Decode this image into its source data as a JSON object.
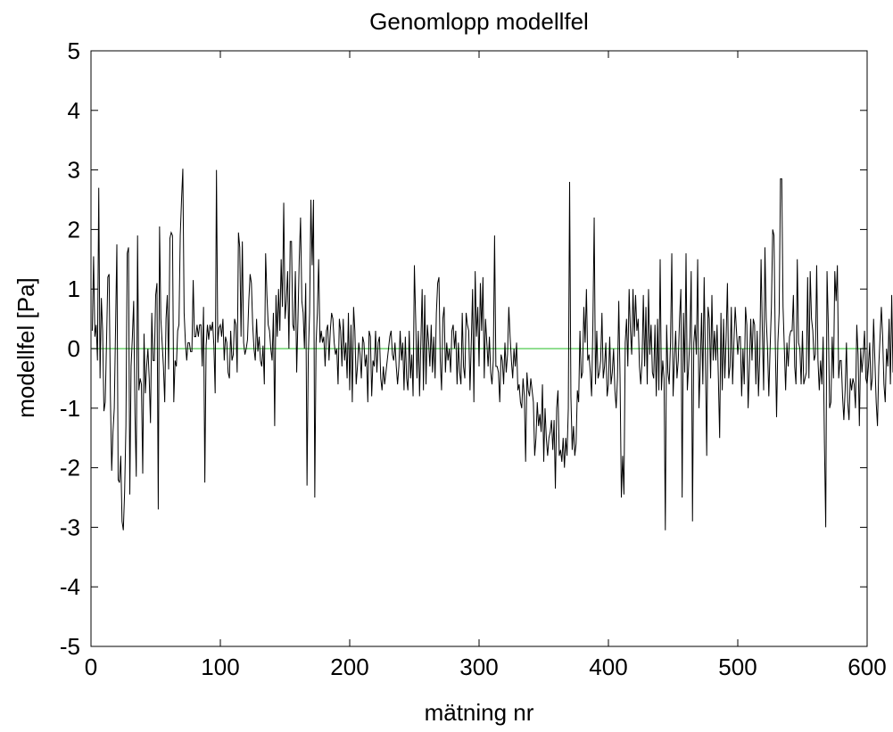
{
  "chart_data": {
    "type": "line",
    "title": "Genomlopp modellfel",
    "xlabel": "mätning nr",
    "ylabel": "modellfel [Pa]",
    "xlim": [
      0,
      600
    ],
    "ylim": [
      -5,
      5
    ],
    "xticks": [
      0,
      100,
      200,
      300,
      400,
      500,
      600
    ],
    "yticks": [
      5,
      4,
      3,
      2,
      1,
      0,
      -1,
      -2,
      -3,
      -4,
      -5
    ],
    "grid": false,
    "colors": {
      "series": "#000000",
      "zero_line": "#4fc94f"
    },
    "reference_line": {
      "y": 0
    },
    "series": [
      {
        "values": [
          0.3,
          1.55,
          0.2,
          0.4,
          -0.2,
          2.7,
          -0.5,
          0.85,
          0.3,
          -1.05,
          -0.9,
          0.1,
          1.2,
          1.25,
          -0.8,
          -2.05,
          -1.4,
          -1.0,
          0.35,
          1.75,
          -2.2,
          -2.25,
          -1.8,
          -2.9,
          -3.05,
          -2.4,
          -1.3,
          1.6,
          1.7,
          -2.45,
          -0.3,
          0.2,
          0.8,
          -1.1,
          -2.15,
          1.9,
          -0.7,
          -0.5,
          -0.6,
          -2.1,
          0.25,
          -0.75,
          -0.3,
          0.0,
          -0.5,
          -1.25,
          0.6,
          -0.2,
          -0.2,
          0.9,
          1.1,
          -2.7,
          2.05,
          0.5,
          0.1,
          -0.3,
          -0.9,
          0.5,
          0.9,
          -0.35,
          1.85,
          1.95,
          1.9,
          -0.9,
          -0.2,
          -0.3,
          0.3,
          0.4,
          1.9,
          2.5,
          3.02,
          0.6,
          0.1,
          -0.2,
          0.1,
          0.1,
          -0.05,
          -0.05,
          1.15,
          0.2,
          0.2,
          0.4,
          0.2,
          0.4,
          0.4,
          -0.3,
          0.7,
          -2.25,
          0.05,
          0.4,
          0.15,
          0.4,
          0.3,
          0.45,
          0.05,
          -0.75,
          3.0,
          0.1,
          0.35,
          0.4,
          0.2,
          0.5,
          -0.2,
          0.2,
          0.1,
          -0.4,
          -0.5,
          0.3,
          -0.2,
          -0.1,
          0.5,
          0.4,
          -0.4,
          1.95,
          1.7,
          0.2,
          1.8,
          0.1,
          -0.1,
          0.0,
          0.15,
          0.8,
          1.25,
          1.1,
          0.4,
          0.0,
          -0.2,
          0.5,
          -0.05,
          0.2,
          -0.2,
          -0.3,
          0.05,
          -0.6,
          1.6,
          0.9,
          0.4,
          0.3,
          0.0,
          -0.2,
          0.6,
          -1.3,
          0.9,
          0.2,
          1.0,
          0.3,
          1.5,
          0.7,
          2.45,
          0.5,
          0.8,
          1.3,
          0.0,
          1.8,
          1.8,
          0.4,
          0.3,
          1.3,
          -0.4,
          0.5,
          1.5,
          2.2,
          0.8,
          0.6,
          0.0,
          1.1,
          -2.3,
          -0.1,
          0.6,
          2.5,
          1.4,
          2.5,
          -2.5,
          0.1,
          0.6,
          1.5,
          0.1,
          0.3,
          0.1,
          0.2,
          -0.3,
          0.3,
          0.4,
          -0.2,
          0.3,
          0.6,
          0.5,
          0.1,
          -0.1,
          0.0,
          -0.6,
          0.5,
          0.3,
          -0.3,
          0.5,
          -0.2,
          0.1,
          -0.5,
          0.6,
          -0.7,
          0.4,
          -0.9,
          0.7,
          0.3,
          -0.6,
          -0.3,
          0.1,
          -0.1,
          -0.5,
          0.2,
          0.1,
          -0.3,
          -0.1,
          -0.9,
          0.3,
          0.2,
          -0.8,
          -0.2,
          -0.3,
          0.3,
          -0.4,
          0.1,
          0.2,
          -0.5,
          -0.7,
          -0.3,
          -0.6,
          -0.4,
          -0.2,
          0.0,
          0.2,
          0.3,
          -0.1,
          -0.2,
          0.1,
          -0.3,
          -0.6,
          -0.3,
          0.3,
          -0.2,
          0.1,
          -0.7,
          0.2,
          -0.5,
          -0.7,
          0.3,
          -0.5,
          -0.1,
          -0.8,
          1.4,
          0.5,
          -0.5,
          0.3,
          -0.8,
          0.1,
          1.0,
          -0.7,
          0.9,
          -0.6,
          0.4,
          0.1,
          -0.3,
          0.4,
          -0.4,
          0.2,
          -0.5,
          0.6,
          1.1,
          1.2,
          -0.2,
          -0.7,
          0.5,
          0.7,
          -0.4,
          0.1,
          -0.2,
          0.0,
          -0.4,
          0.3,
          0.4,
          0.0,
          0.3,
          -0.6,
          0.1,
          -0.4,
          -0.6,
          0.6,
          -0.3,
          -0.5,
          0.6,
          0.4,
          0.3,
          -0.7,
          0.1,
          1.0,
          -0.9,
          1.3,
          0.2,
          0.7,
          -0.3,
          1.1,
          0.3,
          1.2,
          -0.5,
          0.5,
          0.1,
          -0.3,
          0.2,
          -0.4,
          -0.6,
          -0.2,
          1.9,
          -0.3,
          -0.3,
          -0.4,
          -0.9,
          -0.1,
          -0.2,
          -0.6,
          0.1,
          -0.4,
          -0.1,
          0.7,
          0.2,
          -0.2,
          -0.5,
          0.0,
          -0.3,
          0.1,
          -0.7,
          -0.6,
          -0.9,
          -1.0,
          -0.5,
          -0.8,
          -1.9,
          -0.4,
          -0.7,
          -0.8,
          -0.5,
          -0.7,
          -0.9,
          -1.8,
          -1.5,
          -0.9,
          -1.3,
          -1.1,
          -1.4,
          -0.6,
          -1.9,
          -1.0,
          -1.5,
          -1.8,
          -1.5,
          -1.4,
          -1.2,
          -1.7,
          -1.2,
          -2.35,
          -1.0,
          -0.7,
          -1.8,
          -1.7,
          -1.9,
          -1.5,
          -2.0,
          -1.5,
          -1.8,
          -1.0,
          2.8,
          -0.8,
          -1.7,
          -1.3,
          -1.8,
          -1.6,
          -0.7,
          -0.9,
          0.3,
          -0.5,
          -0.4,
          0.7,
          0.1,
          1.0,
          -0.2,
          -0.1,
          -0.4,
          -0.8,
          0.4,
          2.2,
          -0.6,
          0.3,
          -0.5,
          -0.4,
          -0.2,
          0.6,
          -0.5,
          -0.3,
          0.1,
          -0.8,
          -0.6,
          0.2,
          -0.6,
          -0.4,
          0.0,
          -0.7,
          -1.0,
          -0.5,
          0.8,
          -0.5,
          -2.5,
          -1.8,
          -2.45,
          0.1,
          0.5,
          -0.3,
          1.0,
          0.3,
          -0.1,
          1.0,
          0.2,
          0.9,
          0.3,
          0.5,
          -0.3,
          -0.6,
          -0.2,
          0.9,
          -0.3,
          0.7,
          -0.6,
          1.0,
          -0.1,
          0.4,
          -0.4,
          -0.5,
          0.4,
          -0.8,
          0.5,
          -0.7,
          1.5,
          -0.7,
          -0.2,
          -0.5,
          -3.05,
          0.4,
          -0.4,
          -0.6,
          0.1,
          1.6,
          -0.8,
          -0.2,
          0.3,
          -0.5,
          -0.2,
          0.5,
          1.0,
          -2.5,
          0.6,
          -0.4,
          1.6,
          -0.7,
          -0.3,
          0.2,
          1.3,
          -2.9,
          0.1,
          0.4,
          -0.1,
          1.5,
          -1.0,
          -0.3,
          0.6,
          -0.6,
          1.2,
          -0.2,
          -1.8,
          0.7,
          0.5,
          -0.5,
          0.9,
          -0.2,
          0.3,
          -0.2,
          0.4,
          -0.5,
          -1.5,
          0.6,
          -0.7,
          0.5,
          -0.5,
          0.2,
          1.1,
          -0.5,
          -0.3,
          0.7,
          -0.6,
          0.1,
          0.7,
          0.3,
          -0.1,
          0.2,
          0.2,
          -0.8,
          0.0,
          -0.6,
          0.7,
          0.4,
          -1.0,
          -0.3,
          0.5,
          -0.2,
          0.5,
          0.4,
          -0.6,
          0.3,
          -0.8,
          -0.1,
          1.5,
          0.3,
          -0.7,
          1.7,
          0.5,
          0.0,
          -0.8,
          0.0,
          0.7,
          2.0,
          1.9,
          0.1,
          -1.15,
          0.1,
          0.6,
          2.85,
          2.85,
          0.7,
          0.0,
          -0.7,
          0.1,
          -0.3,
          0.2,
          0.3,
          0.3,
          0.9,
          -0.3,
          -0.6,
          1.5,
          0.1,
          0.0,
          -0.6,
          0.3,
          -0.6,
          -0.5,
          -0.4,
          1.2,
          -0.5,
          1.3,
          0.5,
          0.3,
          -0.2,
          -0.1,
          1.4,
          -0.2,
          -0.7,
          -0.2,
          -0.6,
          0.2,
          -1.6,
          -3.0,
          1.3,
          0.4,
          -1.0,
          -0.9,
          0.2,
          -0.5,
          1.3,
          0.8,
          1.4,
          -0.5,
          -0.2,
          -0.2,
          -0.8,
          -1.2,
          -0.7,
          0.1,
          -0.9,
          -1.2,
          -0.5,
          -0.7,
          -0.5,
          -0.6,
          -1.0,
          0.4,
          -0.1,
          -1.3,
          0.0,
          -0.4,
          -0.1,
          0.3,
          -0.5,
          -0.6,
          -0.3,
          0.1,
          -0.7,
          -0.5,
          0.5,
          -0.2,
          -0.9,
          -1.3,
          -0.3,
          0.2,
          0.7,
          0.2,
          -0.6,
          -0.9,
          0.0,
          -0.3,
          0.5,
          -0.6,
          0.9,
          -0.4,
          0.6,
          1.6,
          -0.5,
          1.0,
          1.5,
          -0.5,
          0.4,
          -0.4,
          1.1,
          0.1,
          -0.8,
          0.2,
          -1.1,
          1.0,
          -1.65,
          0.9,
          -0.1,
          0.2,
          -1.0,
          0.85,
          -0.4,
          -1.8
        ]
      }
    ]
  }
}
